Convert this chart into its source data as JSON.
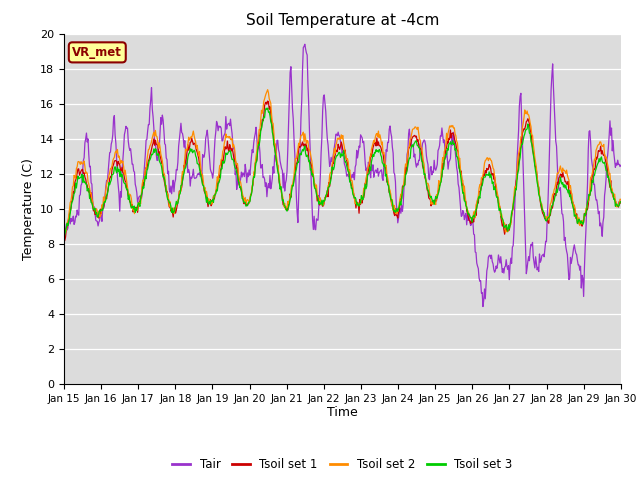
{
  "title": "Soil Temperature at -4cm",
  "xlabel": "Time",
  "ylabel": "Temperature (C)",
  "ylim": [
    0,
    20
  ],
  "yticks": [
    0,
    2,
    4,
    6,
    8,
    10,
    12,
    14,
    16,
    18,
    20
  ],
  "date_labels": [
    "Jan 15",
    "Jan 16",
    "Jan 17",
    "Jan 18",
    "Jan 19",
    "Jan 20",
    "Jan 21",
    "Jan 22",
    "Jan 23",
    "Jan 24",
    "Jan 25",
    "Jan 26",
    "Jan 27",
    "Jan 28",
    "Jan 29",
    "Jan 30"
  ],
  "n_points": 720,
  "tair_color": "#9932CC",
  "tsoil1_color": "#CC0000",
  "tsoil2_color": "#FF8C00",
  "tsoil3_color": "#00CC00",
  "bg_color": "#DCDCDC",
  "legend_label_tair": "Tair",
  "legend_label_tsoil1": "Tsoil set 1",
  "legend_label_tsoil2": "Tsoil set 2",
  "legend_label_tsoil3": "Tsoil set 3",
  "annotation_text": "VR_met",
  "annotation_color": "#8B0000",
  "annotation_bg": "#FFFF99"
}
